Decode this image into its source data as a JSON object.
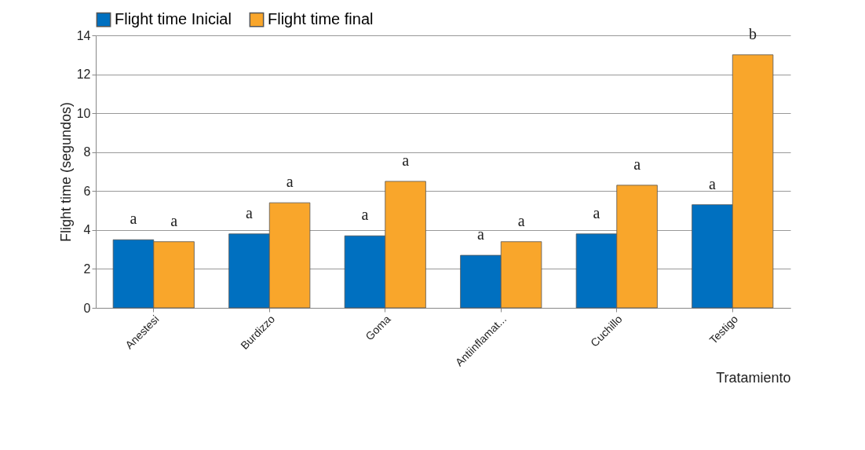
{
  "chart_data": {
    "type": "bar",
    "ylabel": "Flight time (segundos)",
    "xlabel": "Tratamiento",
    "categories": [
      "Anestesi",
      "Burdizzo",
      "Goma",
      "Antiinflamat...",
      "Cuchillo",
      "Testigo"
    ],
    "series": [
      {
        "name": "Flight time Inicial",
        "color": "#0070c0",
        "values": [
          3.5,
          3.8,
          3.7,
          2.7,
          3.8,
          5.3
        ]
      },
      {
        "name": "Flight time final",
        "color": "#f9a62b",
        "values": [
          3.4,
          5.4,
          6.5,
          3.4,
          6.3,
          13.0
        ]
      }
    ],
    "ylim": [
      0,
      14
    ],
    "yticks": [
      0,
      2,
      4,
      6,
      8,
      10,
      12,
      14
    ],
    "grid": "y",
    "legend": "top",
    "annotations": [
      {
        "text": "a",
        "x": "Anestesi",
        "y": 3.5
      },
      {
        "text": "a",
        "x": "Anestesi",
        "y": 3.4
      },
      {
        "text": "a",
        "x": "Burdizzo",
        "y": 3.8
      },
      {
        "text": "a",
        "x": "Burdizzo",
        "y": 5.4
      },
      {
        "text": "a",
        "x": "Goma",
        "y": 3.7
      },
      {
        "text": "a",
        "x": "Goma",
        "y": 6.5
      },
      {
        "text": "a",
        "x": "Antiinflamat...",
        "y": 2.7
      },
      {
        "text": "a",
        "x": "Antiinflamat...",
        "y": 3.4
      },
      {
        "text": "a",
        "x": "Cuchillo",
        "y": 3.8
      },
      {
        "text": "a",
        "x": "Cuchillo",
        "y": 6.3
      },
      {
        "text": "a",
        "x": "Testigo",
        "y": 5.3
      },
      {
        "text": "b",
        "x": "Testigo",
        "y": 13.0
      }
    ]
  }
}
